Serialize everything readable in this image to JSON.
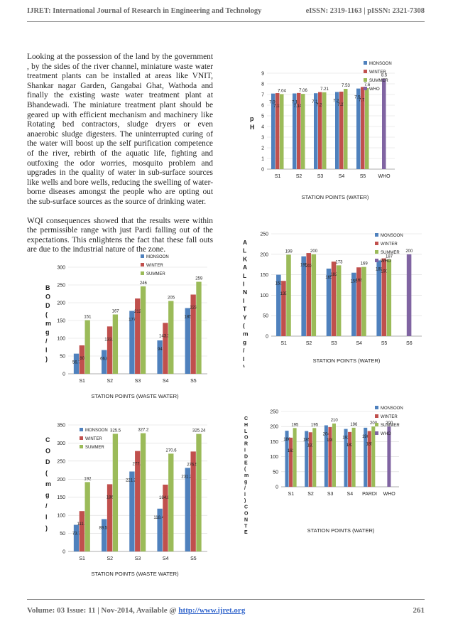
{
  "header": {
    "journal": "IJRET: International Journal of Research in Engineering and Technology",
    "issn": "eISSN: 2319-1163 | pISSN: 2321-7308"
  },
  "body": {
    "p1": "Looking at the possession of the land by the government , by the sides of the river channel, miniature waste water treatment plants can be installed at areas like VNIT, Shankar nagar Garden, Gangabai Ghat, Wathoda and finally the existing waste water treatment plant at Bhandewadi. The miniature treatment plant should be geared up with efficient mechanism and machinery like Rotating bed contractors, sludge dryers or even anaerobic sludge digesters. The uninterrupted curing of the water will boost up the self purification competence of the river, rebirth of the aquatic life, fighting and outfoxing the odor worries, mosquito problem and upgrades in the quality of water in sub-surface sources like wells and bore wells, reducing the swelling of water-borne diseases amongst the people who are opting out the sub-surface sources as the source of drinking water.",
    "p2": "WQI consequences showed that the results were within the permissible range with just Pardi falling out of the expectations. This enlightens the fact that these fall outs are due to the industrial nature of the zone."
  },
  "footer": {
    "left": "Volume: 03 Issue: 11 | Nov-2014, Available @ ",
    "link": "http://www.ijret.org",
    "page": "261"
  },
  "colors": {
    "monsoon": "#4f81bd",
    "winter": "#c0504d",
    "summer": "#9bbb59",
    "who": "#8064a2"
  },
  "chart_data": [
    {
      "id": "ph",
      "type": "bar",
      "categories": [
        "S1",
        "S2",
        "S3",
        "S4",
        "S5",
        "WHO"
      ],
      "series": [
        {
          "name": "MONSOON",
          "values": [
            7.09,
            7.1,
            7.12,
            7.24,
            7.56,
            null
          ],
          "labels": [
            "7.09",
            "7.1",
            "7.12",
            "7.24",
            "7.56",
            ""
          ]
        },
        {
          "name": "WINTER",
          "values": [
            7.13,
            7.144,
            7.23,
            7.27,
            7.71,
            null
          ],
          "labels": [
            "7.13",
            "7.144",
            "7.23",
            "7.27",
            "7.71",
            ""
          ]
        },
        {
          "name": "SUMMER",
          "values": [
            7.04,
            7.06,
            7.21,
            7.53,
            7.6,
            null
          ],
          "labels": [
            "7.04",
            "7.06",
            "7.21",
            "7.53",
            "7.6",
            ""
          ]
        },
        {
          "name": "WHO",
          "values": [
            null,
            null,
            null,
            null,
            null,
            8.5
          ],
          "labels": [
            "",
            "",
            "",
            "",
            "",
            "8.5"
          ]
        }
      ],
      "ylim": [
        0,
        9
      ],
      "yticks": [
        0,
        1,
        2,
        3,
        4,
        5,
        6,
        7,
        8,
        9
      ],
      "ylabel": "p H",
      "xlabel": "STATION POINTS (WATER)",
      "legend": "top-right"
    },
    {
      "id": "bod",
      "type": "bar",
      "categories": [
        "S1",
        "S2",
        "S3",
        "S4",
        "S5"
      ],
      "series": [
        {
          "name": "MONSOON",
          "values": [
            56.7,
            66.8,
            177,
            94,
            185
          ],
          "labels": [
            "56.7",
            "66.8",
            "177",
            "94",
            "185"
          ]
        },
        {
          "name": "WINTER",
          "values": [
            80,
            133.3,
            212,
            143.33,
            223
          ],
          "labels": [
            "80",
            "133.3",
            "212",
            "143.33",
            "223"
          ]
        },
        {
          "name": "SUMMER",
          "values": [
            151,
            167,
            246,
            205,
            259
          ],
          "labels": [
            "151",
            "167",
            "246",
            "205",
            "259"
          ]
        }
      ],
      "ylim": [
        0,
        300
      ],
      "yticks": [
        0,
        50,
        100,
        150,
        200,
        250,
        300
      ],
      "ylabel": "B O D ( m g / l )",
      "xlabel": "STATION POINTS (WASTE WATER)",
      "legend": "top-right"
    },
    {
      "id": "alkalinity",
      "type": "bar",
      "categories": [
        "S1",
        "S2",
        "S3",
        "S4",
        "S5",
        "S6"
      ],
      "series": [
        {
          "name": "MONSOON",
          "values": [
            150,
            195,
            165,
            155,
            185,
            null
          ],
          "labels": [
            "150",
            "195",
            "165",
            "155",
            "185",
            ""
          ]
        },
        {
          "name": "WINTER",
          "values": [
            135,
            203,
            182,
            168,
            190,
            null
          ],
          "labels": [
            "135",
            "203",
            "182",
            "168",
            "190",
            ""
          ]
        },
        {
          "name": "SUMMER",
          "values": [
            199,
            200,
            173,
            169,
            187,
            null
          ],
          "labels": [
            "199",
            "200",
            "173",
            "169",
            "187",
            ""
          ]
        },
        {
          "name": "WHO",
          "values": [
            null,
            null,
            null,
            null,
            null,
            200
          ],
          "labels": [
            "",
            "",
            "",
            "",
            "",
            "200"
          ]
        }
      ],
      "ylim": [
        0,
        250
      ],
      "yticks": [
        0,
        50,
        100,
        150,
        200,
        250
      ],
      "ylabel": "A L K A L I N I T Y ( m g / l )",
      "xlabel": "STATION POINTS (WATER)",
      "legend": "top-right"
    },
    {
      "id": "cod",
      "type": "bar",
      "categories": [
        "S1",
        "S2",
        "S3",
        "S4",
        "S5"
      ],
      "series": [
        {
          "name": "MONSOON",
          "values": [
            73.7,
            89.53,
            221.24,
            118.44,
            231.25
          ],
          "labels": [
            "73.7",
            "89.53",
            "221.24",
            "118.44",
            "231.25"
          ]
        },
        {
          "name": "WINTER",
          "values": [
            111.7,
            186,
            277.9,
            184.89,
            276.52
          ],
          "labels": [
            "111.7",
            "186",
            "277.9",
            "184.89",
            "276.52"
          ]
        },
        {
          "name": "SUMMER",
          "values": [
            192,
            325.5,
            327.2,
            270.6,
            325.24
          ],
          "labels": [
            "192",
            "325.5",
            "327.2",
            "270.6",
            "325.24"
          ]
        }
      ],
      "ylim": [
        0,
        350
      ],
      "yticks": [
        0,
        50,
        100,
        150,
        200,
        250,
        300,
        350
      ],
      "ylabel": "C O D ( m g / l )",
      "xlabel": "STATION POINTS (WASTE WATER)",
      "legend": "top-left"
    },
    {
      "id": "chloride",
      "type": "bar",
      "categories": [
        "S1",
        "S2",
        "S3",
        "S4",
        "PARDI",
        "WHO"
      ],
      "series": [
        {
          "name": "MONSOON",
          "values": [
            186,
            185,
            204,
            192,
            196,
            null
          ],
          "labels": [
            "186",
            "185",
            "204",
            "192",
            "196",
            ""
          ]
        },
        {
          "name": "WINTER",
          "values": [
            163,
            181,
            198,
            182,
            185,
            null
          ],
          "labels": [
            "163",
            "181",
            "198",
            "182",
            "185",
            ""
          ]
        },
        {
          "name": "SUMMER",
          "values": [
            195,
            195,
            210,
            196,
            200,
            null
          ],
          "labels": [
            "195",
            "195",
            "210",
            "196",
            "200",
            ""
          ]
        },
        {
          "name": "WHO",
          "values": [
            null,
            null,
            null,
            null,
            null,
            200
          ],
          "labels": [
            "",
            "",
            "",
            "",
            "",
            "200"
          ]
        }
      ],
      "ylim": [
        0,
        250
      ],
      "yticks": [
        0,
        50,
        100,
        150,
        200,
        250
      ],
      "ylabel": "C H L O R I D E ( m g / l ) C O N T E N T",
      "xlabel": "STATION POINTS (WATER)",
      "legend": "top-right"
    }
  ]
}
